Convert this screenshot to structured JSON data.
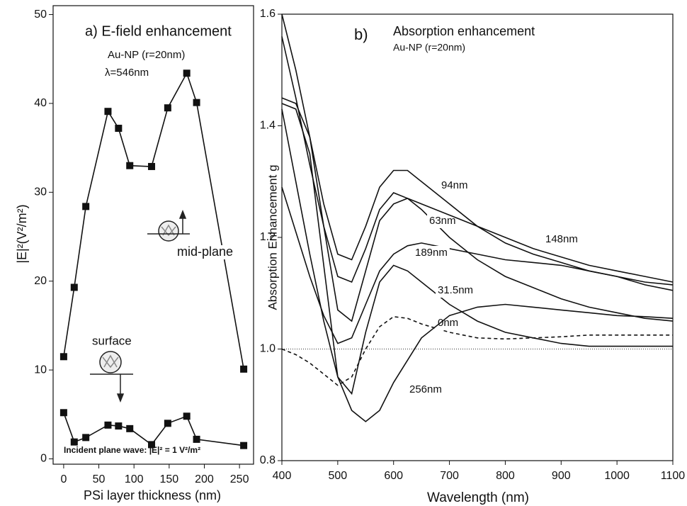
{
  "chart_data": [
    {
      "type": "line",
      "title": "a) E-field enhancement",
      "annotations": [
        "Au-NP (r=20nm)",
        "λ=546nm",
        "Incident plane wave: |E|² = 1 V²/m²"
      ],
      "x_label": "PSi layer thickness (nm)",
      "y_label": "|E|²(V²/m²)",
      "x": [
        0,
        15,
        31.5,
        63,
        78,
        94,
        125,
        148,
        175,
        189,
        256
      ],
      "series": [
        {
          "name": "mid-plane",
          "color": "#111111",
          "values": [
            11.5,
            19.3,
            28.4,
            39.1,
            37.2,
            33,
            32.9,
            39.5,
            43.4,
            40.1,
            10.1
          ]
        },
        {
          "name": "surface",
          "color": "#111111",
          "values": [
            5.2,
            1.9,
            2.4,
            3.8,
            3.7,
            3.4,
            1.6,
            4.0,
            4.8,
            2.2,
            1.5
          ]
        }
      ],
      "xlim": [
        -15,
        270
      ],
      "xticks": [
        0,
        50,
        100,
        150,
        200,
        250
      ],
      "ylim": [
        -0.6,
        51
      ],
      "yticks": [
        0,
        10,
        20,
        30,
        40,
        50
      ]
    },
    {
      "type": "line",
      "title": "Absorption enhancement",
      "annotations": [
        "b)",
        "Au-NP (r=20nm)"
      ],
      "x_label": "Wavelength (nm)",
      "y_label": "Absorption Enhancement g",
      "x": [
        400,
        425,
        450,
        475,
        500,
        525,
        550,
        575,
        600,
        625,
        650,
        700,
        750,
        800,
        850,
        900,
        950,
        1000,
        1050,
        1100
      ],
      "series": [
        {
          "name": "94nm",
          "color": "#111111",
          "style": "solid",
          "values": [
            1.6,
            1.5,
            1.38,
            1.26,
            1.17,
            1.16,
            1.22,
            1.29,
            1.32,
            1.32,
            1.3,
            1.26,
            1.22,
            1.19,
            1.17,
            1.155,
            1.14,
            1.13,
            1.12,
            1.115
          ]
        },
        {
          "name": "63nm",
          "color": "#111111",
          "style": "solid",
          "values": [
            1.56,
            1.45,
            1.33,
            1.22,
            1.13,
            1.12,
            1.18,
            1.25,
            1.28,
            1.27,
            1.25,
            1.2,
            1.16,
            1.13,
            1.11,
            1.09,
            1.075,
            1.065,
            1.055,
            1.05
          ]
        },
        {
          "name": "148nm",
          "color": "#111111",
          "style": "solid",
          "values": [
            1.45,
            1.44,
            1.38,
            1.22,
            1.07,
            1.05,
            1.14,
            1.23,
            1.26,
            1.27,
            1.26,
            1.24,
            1.22,
            1.2,
            1.18,
            1.165,
            1.15,
            1.14,
            1.13,
            1.12
          ]
        },
        {
          "name": "189nm",
          "color": "#111111",
          "style": "solid",
          "values": [
            1.29,
            1.21,
            1.13,
            1.06,
            1.01,
            1.02,
            1.08,
            1.14,
            1.17,
            1.185,
            1.19,
            1.18,
            1.17,
            1.16,
            1.155,
            1.15,
            1.14,
            1.13,
            1.115,
            1.105
          ]
        },
        {
          "name": "31.5nm",
          "color": "#111111",
          "style": "solid",
          "values": [
            1.44,
            1.43,
            1.35,
            1.15,
            0.95,
            0.92,
            1.03,
            1.12,
            1.15,
            1.14,
            1.12,
            1.08,
            1.05,
            1.03,
            1.02,
            1.01,
            1.005,
            1.005,
            1.005,
            1.005
          ]
        },
        {
          "name": "0nm",
          "color": "#111111",
          "style": "dashed",
          "values": [
            1.0,
            0.99,
            0.975,
            0.955,
            0.935,
            0.95,
            1.0,
            1.04,
            1.058,
            1.055,
            1.045,
            1.03,
            1.02,
            1.018,
            1.02,
            1.022,
            1.025,
            1.025,
            1.025,
            1.025
          ]
        },
        {
          "name": "256nm",
          "color": "#111111",
          "style": "solid",
          "values": [
            1.43,
            1.3,
            1.17,
            1.05,
            0.95,
            0.89,
            0.87,
            0.89,
            0.94,
            0.98,
            1.02,
            1.06,
            1.075,
            1.08,
            1.075,
            1.07,
            1.065,
            1.06,
            1.058,
            1.055
          ]
        }
      ],
      "reference_line": 1,
      "xlim": [
        400,
        1100
      ],
      "xticks": [
        400,
        500,
        600,
        700,
        800,
        900,
        1000,
        1100
      ],
      "ylim": [
        0.8,
        1.6
      ],
      "yticks": [
        0.8,
        {
          "value": 1,
          "label": "1.0"
        },
        1.2,
        1.4,
        1.6
      ]
    }
  ]
}
